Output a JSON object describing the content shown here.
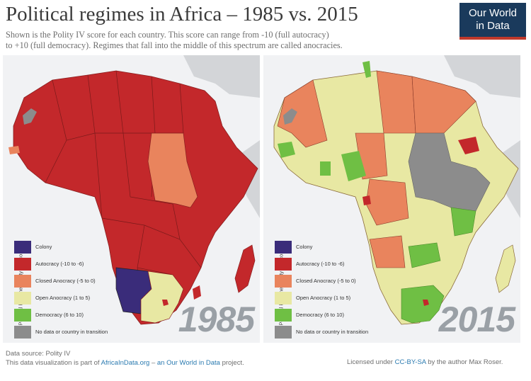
{
  "title": "Political regimes in Africa – 1985 vs. 2015",
  "subtitle_line1": "Shown is the Polity IV score for each country. This score can range from -10 (full autocracy)",
  "subtitle_line2": "to +10 (full democracy). Regimes that fall into the middle of this spectrum are called anocracies.",
  "logo_line1": "Our World",
  "logo_line2": "in Data",
  "legend": {
    "axis_label": "Political Regime (Polity IV Score)",
    "items": [
      {
        "label": "Colony",
        "color": "#3a2c7a"
      },
      {
        "label": "Autocracy (-10 to -6)",
        "color": "#c3282b"
      },
      {
        "label": "Closed Anocracy (-5 to 0)",
        "color": "#e9845d"
      },
      {
        "label": "Open Anocracy (1 to 5)",
        "color": "#e8e8a3"
      },
      {
        "label": "Democracy (6 to 10)",
        "color": "#6fbf44"
      },
      {
        "label": "No data or country in transition",
        "color": "#8c8c8c"
      }
    ]
  },
  "panels": [
    {
      "year": "1985"
    },
    {
      "year": "2015"
    }
  ],
  "footer": {
    "source": "Data source: Polity IV",
    "line2_pre": "This data visualization is part of ",
    "line2_link": "AfricaInData.org",
    "line2_mid": " – ",
    "line2_link2": "an Our World in Data",
    "line2_post": " project.",
    "license_pre": "Licensed under ",
    "license_link": "CC-BY-SA",
    "license_post": " by the author Max Roser."
  },
  "colors": {
    "ocean": "#f1f2f4",
    "land_gray": "#cfd1d4",
    "border": "#6b2a2a"
  }
}
